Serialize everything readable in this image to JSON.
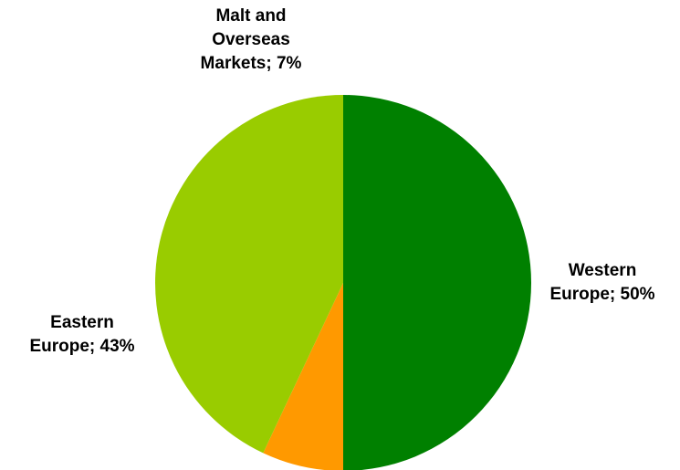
{
  "chart_data": {
    "type": "pie",
    "categories": [
      "Western Europe",
      "Malt and Overseas Markets",
      "Eastern Europe"
    ],
    "values": [
      50,
      7,
      43
    ],
    "unit": "%",
    "colors": [
      "#008000",
      "#ff9900",
      "#99cc00"
    ],
    "data_labels": [
      [
        "Western",
        "Europe; 50%"
      ],
      [
        "Malt and",
        "Overseas",
        "Markets; 7%"
      ],
      [
        "Eastern",
        "Europe; 43%"
      ]
    ],
    "start_angle_deg": 0,
    "direction": "clockwise",
    "legend": "none"
  }
}
